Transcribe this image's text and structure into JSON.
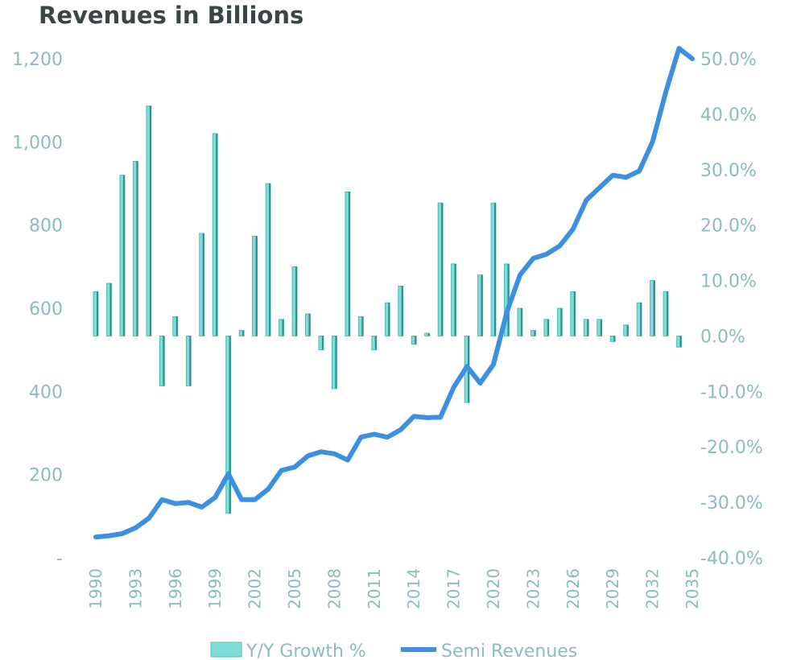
{
  "chart_data": {
    "type": "bar+line",
    "title": "Revenues in Billions",
    "years": [
      1990,
      1991,
      1992,
      1993,
      1994,
      1995,
      1996,
      1997,
      1998,
      1999,
      2000,
      2001,
      2002,
      2003,
      2004,
      2005,
      2006,
      2007,
      2008,
      2009,
      2010,
      2011,
      2012,
      2013,
      2014,
      2015,
      2016,
      2017,
      2018,
      2019,
      2020,
      2021,
      2022,
      2023,
      2024,
      2025,
      2026,
      2027,
      2028,
      2029,
      2030,
      2031,
      2032,
      2033,
      2034,
      2035
    ],
    "x_tick_labels": [
      "1990",
      "1993",
      "1996",
      "1999",
      "2002",
      "2005",
      "2008",
      "2011",
      "2014",
      "2017",
      "2020",
      "2023",
      "2026",
      "2029",
      "2032",
      "2035"
    ],
    "left_axis": {
      "min": 0,
      "max": 1200,
      "ticks": [
        "1,200",
        "1,000",
        "800",
        "600",
        "400",
        "200",
        "-"
      ],
      "tick_values": [
        1200,
        1000,
        800,
        600,
        400,
        200,
        0
      ]
    },
    "right_axis": {
      "min": -40,
      "max": 50,
      "ticks": [
        "50.0%",
        "40.0%",
        "30.0%",
        "20.0%",
        "10.0%",
        "0.0%",
        "-10.0%",
        "-20.0%",
        "-30.0%",
        "-40.0%"
      ],
      "tick_values": [
        50,
        40,
        30,
        20,
        10,
        0,
        -10,
        -20,
        -30,
        -40
      ]
    },
    "series": [
      {
        "name": "Y/Y Growth %",
        "axis": "right",
        "kind": "bar",
        "color": "#5fd0cc",
        "values": [
          8,
          9.5,
          29,
          31.5,
          41.5,
          -9,
          3.5,
          -9,
          18.5,
          36.5,
          -32,
          1,
          18,
          27.5,
          3,
          12.5,
          4,
          -2.5,
          -9.5,
          26,
          3.5,
          -2.5,
          6,
          9,
          -1.5,
          0.5,
          24,
          13,
          -12,
          11,
          24,
          13,
          5,
          1,
          3,
          5,
          8,
          3,
          3,
          -1,
          2,
          6,
          10,
          8,
          -2,
          null
        ]
      },
      {
        "name": "Semi Revenues",
        "axis": "left",
        "kind": "line",
        "color": "#3d8fe0",
        "values": [
          50,
          53,
          58,
          72,
          95,
          140,
          130,
          133,
          122,
          145,
          202,
          140,
          140,
          165,
          210,
          218,
          245,
          255,
          250,
          235,
          290,
          297,
          290,
          308,
          340,
          337,
          338,
          410,
          460,
          420,
          465,
          590,
          680,
          720,
          730,
          750,
          790,
          860,
          890,
          920,
          915,
          930,
          1000,
          1120,
          1225,
          1200
        ]
      }
    ],
    "legend": {
      "position": "bottom",
      "items": [
        "Y/Y Growth %",
        "Semi Revenues"
      ]
    }
  }
}
